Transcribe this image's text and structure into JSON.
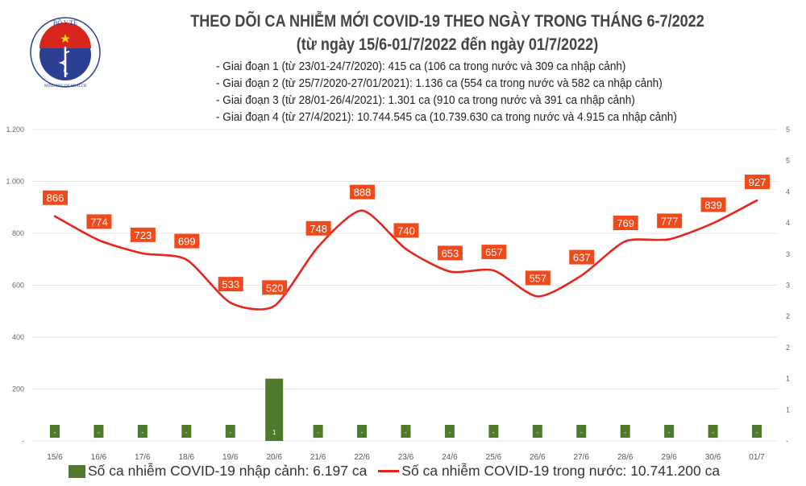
{
  "logo": {
    "text_top": "BỘ Y TẾ",
    "text_bottom": "MINISTRY OF HEALTH"
  },
  "title": "THEO DÕI CA NHIỄM MỚI COVID-19 THEO NGÀY TRONG THÁNG 6-7/2022",
  "subtitle": "(từ ngày 15/6-01/7/2022 đến ngày 01/7/2022)",
  "bullets": [
    "- Giai đoạn 1 (từ 23/01-24/7/2020): 415 ca (106 ca trong nước và 309 ca nhập cảnh)",
    "- Giai đoạn 2 (từ 25/7/2020-27/01/2021): 1.136 ca (554 ca trong nước và 582 ca nhập cảnh)",
    "- Giai đoạn 3 (từ 28/01-26/4/2021): 1.301 ca (910 ca trong nước và 391 ca nhập cảnh)",
    "- Giai đoạn 4 (từ 27/4/2021): 10.744.545 ca (10.739.630 ca trong nước và 4.915 ca nhập cảnh)"
  ],
  "chart_data": {
    "type": "bar+line",
    "categories": [
      "15/6",
      "16/6",
      "17/6",
      "18/6",
      "19/6",
      "20/6",
      "21/6",
      "22/6",
      "23/6",
      "24/6",
      "25/6",
      "26/6",
      "27/6",
      "28/6",
      "29/6",
      "30/6",
      "01/7"
    ],
    "left_axis": {
      "ylim": [
        0,
        1200
      ],
      "ticks": [
        "-",
        "200",
        "400",
        "600",
        "800",
        "1.000",
        "1.200"
      ]
    },
    "right_axis": {
      "ylim": [
        0,
        5
      ],
      "ticks": [
        "-",
        "1",
        "1",
        "2",
        "2",
        "3",
        "3",
        "4",
        "4",
        "5",
        "5"
      ]
    },
    "grid": true,
    "legend_position": "bottom",
    "series": [
      {
        "name": "Số ca nhiễm COVID-19 nhập cảnh: 6.197 ca",
        "type": "bar",
        "axis": "right",
        "color": "#4f7a2c",
        "values": [
          0,
          0,
          0,
          0,
          0,
          1,
          0,
          0,
          0,
          0,
          0,
          0,
          0,
          0,
          0,
          0,
          0
        ],
        "labels": [
          "-",
          "-",
          "-",
          "-",
          "-",
          "1",
          "-",
          "-",
          "-",
          "-",
          "-",
          "-",
          "-",
          "-",
          "-",
          "-",
          "-"
        ]
      },
      {
        "name": "Số ca nhiễm COVID-19 trong nước: 10.741.200 ca",
        "type": "line",
        "axis": "left",
        "color": "#e8251a",
        "label_color": "#f04a1c",
        "values": [
          866,
          774,
          723,
          699,
          533,
          520,
          748,
          888,
          740,
          653,
          657,
          557,
          637,
          769,
          777,
          839,
          927
        ]
      }
    ]
  }
}
